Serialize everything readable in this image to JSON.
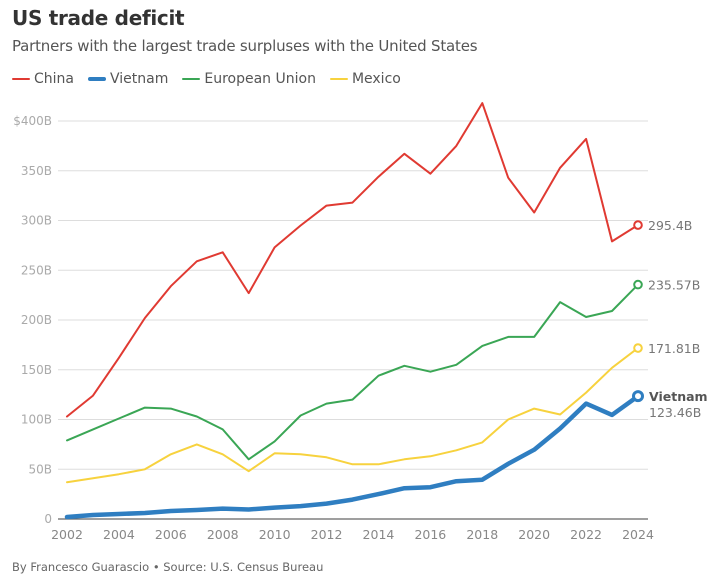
{
  "header": {
    "title": "US trade deficit",
    "subtitle": "Partners with the largest trade surpluses with the United States"
  },
  "legend": [
    {
      "name": "China",
      "color": "#e03a32",
      "thick": false
    },
    {
      "name": "Vietnam",
      "color": "#2f7ec1",
      "thick": true
    },
    {
      "name": "European Union",
      "color": "#3aa655",
      "thick": false
    },
    {
      "name": "Mexico",
      "color": "#f7d23e",
      "thick": false
    }
  ],
  "footer": {
    "credit": "By Francesco Guarascio • Source: U.S. Census Bureau"
  },
  "chart_data": {
    "type": "line",
    "title": "US trade deficit",
    "subtitle": "Partners with the largest trade surpluses with the United States",
    "xlabel": "",
    "ylabel": "",
    "x": [
      2002,
      2003,
      2004,
      2005,
      2006,
      2007,
      2008,
      2009,
      2010,
      2011,
      2012,
      2013,
      2014,
      2015,
      2016,
      2017,
      2018,
      2019,
      2020,
      2021,
      2022,
      2023,
      2024
    ],
    "xticks": [
      "2002",
      "2004",
      "2006",
      "2008",
      "2010",
      "2012",
      "2014",
      "2016",
      "2018",
      "2020",
      "2022",
      "2024"
    ],
    "xtick_values": [
      2002,
      2004,
      2006,
      2008,
      2010,
      2012,
      2014,
      2016,
      2018,
      2020,
      2022,
      2024
    ],
    "yticks": [
      "0",
      "50B",
      "100B",
      "150B",
      "200B",
      "250B",
      "300B",
      "350B",
      "$400B"
    ],
    "ytick_values": [
      0,
      50,
      100,
      150,
      200,
      250,
      300,
      350,
      400
    ],
    "ylim": [
      0,
      400
    ],
    "xlim": [
      2002,
      2024
    ],
    "unit": "billions USD",
    "grid": true,
    "legend_position": "top-left",
    "series": [
      {
        "name": "China",
        "color": "#e03a32",
        "width": "thin",
        "values": [
          103,
          124,
          162,
          202,
          234,
          259,
          268,
          227,
          273,
          295,
          315,
          318,
          344,
          367,
          347,
          375,
          418,
          343,
          308,
          353,
          382,
          279,
          295.4
        ],
        "end_label": "295.4B",
        "end_name": ""
      },
      {
        "name": "European Union",
        "color": "#3aa655",
        "width": "thin",
        "values": [
          79,
          90,
          101,
          112,
          111,
          103,
          90,
          60,
          78,
          104,
          116,
          120,
          144,
          154,
          148,
          155,
          174,
          183,
          183,
          218,
          203,
          209,
          235.57
        ],
        "end_label": "235.57B",
        "end_name": ""
      },
      {
        "name": "Mexico",
        "color": "#f7d23e",
        "width": "thin",
        "values": [
          37,
          41,
          45,
          50,
          65,
          75,
          65,
          48,
          66,
          65,
          62,
          55,
          55,
          60,
          63,
          69,
          77,
          100,
          111,
          105,
          127,
          152,
          171.81
        ],
        "end_label": "171.81B",
        "end_name": ""
      },
      {
        "name": "Vietnam",
        "color": "#2f7ec1",
        "width": "thick",
        "values": [
          2,
          4,
          5,
          6,
          8,
          9,
          10.5,
          9.5,
          11.5,
          13,
          15.5,
          19.5,
          25,
          31,
          32,
          38,
          39.5,
          55.5,
          69.6,
          91,
          116,
          104.6,
          123.46
        ],
        "end_label": "123.46B",
        "end_name": "Vietnam"
      }
    ]
  }
}
